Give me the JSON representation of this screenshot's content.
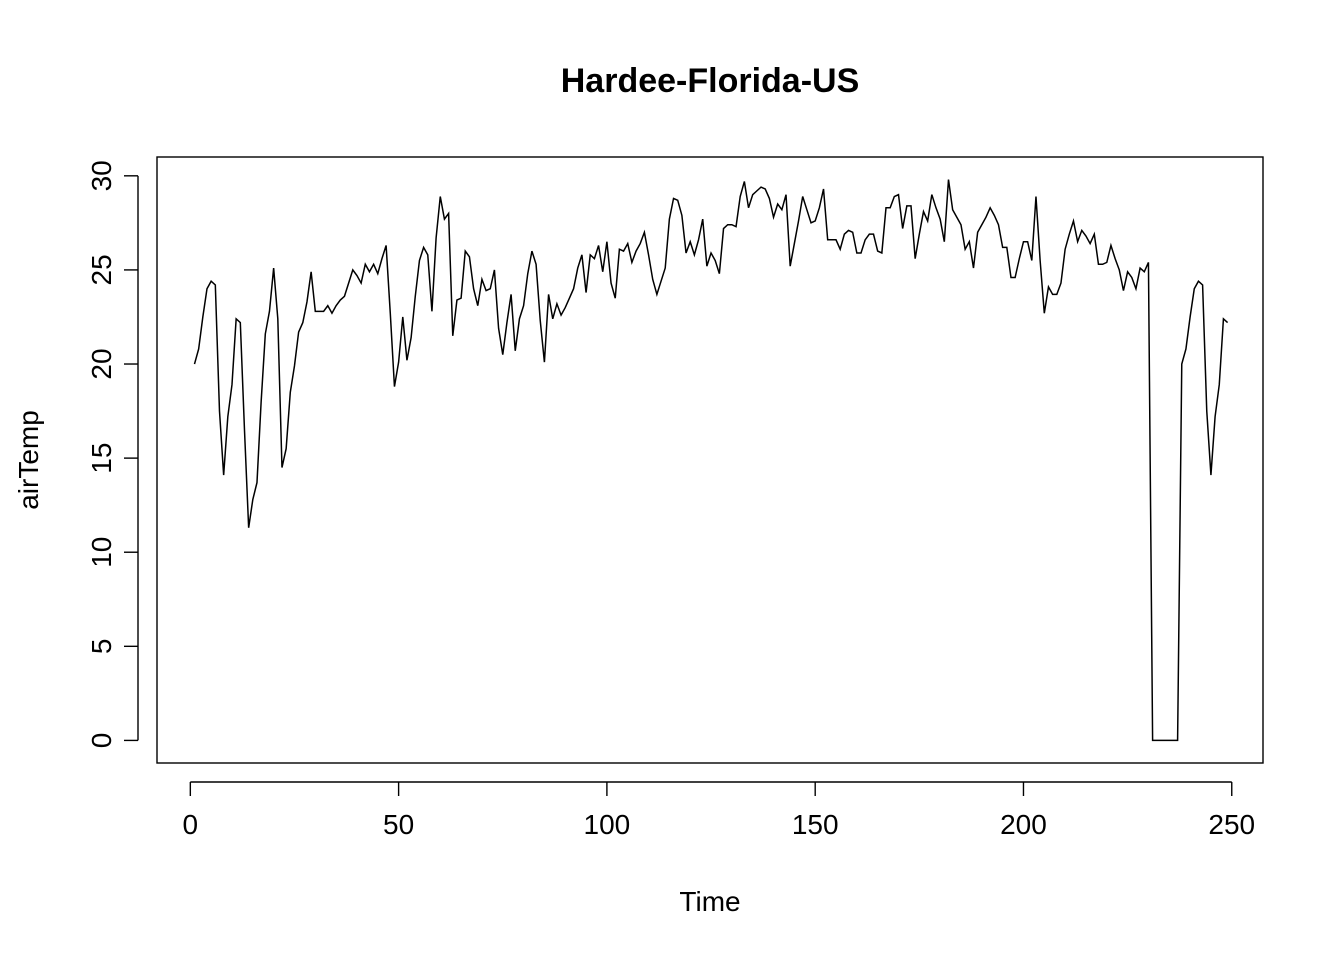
{
  "chart_data": {
    "type": "line",
    "title": "Hardee-Florida-US",
    "xlabel": "Time",
    "ylabel": "airTemp",
    "xlim": [
      -8,
      257.5
    ],
    "ylim": [
      -1.2,
      31.0
    ],
    "xticks": [
      0,
      50,
      100,
      150,
      200,
      250
    ],
    "yticks": [
      0,
      5,
      10,
      15,
      20,
      25,
      30
    ],
    "grid": false,
    "legend": "none",
    "series": [
      {
        "color": "#000000",
        "values": [
          20.0,
          20.8,
          22.5,
          24.0,
          24.4,
          24.2,
          17.5,
          14.1,
          17.2,
          18.9,
          22.4,
          22.2,
          16.5,
          11.3,
          12.8,
          13.7,
          18.0,
          21.6,
          22.8,
          25.1,
          22.4,
          14.5,
          15.5,
          18.5,
          19.9,
          21.7,
          22.2,
          23.3,
          24.9,
          22.8,
          22.8,
          22.8,
          23.1,
          22.7,
          23.1,
          23.4,
          23.6,
          24.3,
          25.0,
          24.7,
          24.3,
          25.3,
          24.9,
          25.3,
          24.8,
          25.6,
          26.3,
          22.7,
          18.8,
          20.1,
          22.5,
          20.2,
          21.4,
          23.6,
          25.5,
          26.2,
          25.8,
          22.8,
          26.7,
          28.9,
          27.7,
          28.0,
          21.5,
          23.4,
          23.5,
          26.0,
          25.7,
          24.0,
          23.1,
          24.5,
          23.9,
          24.0,
          25.0,
          21.9,
          20.5,
          22.2,
          23.7,
          20.7,
          22.4,
          23.1,
          24.8,
          26.0,
          25.3,
          22.3,
          20.1,
          23.7,
          22.4,
          23.2,
          22.6,
          23.0,
          23.5,
          24.0,
          25.1,
          25.8,
          23.8,
          25.8,
          25.6,
          26.3,
          24.9,
          26.5,
          24.3,
          23.5,
          26.1,
          26.0,
          26.4,
          25.4,
          26.0,
          26.4,
          27.0,
          25.8,
          24.5,
          23.7,
          24.4,
          25.1,
          27.7,
          28.8,
          28.7,
          27.9,
          25.9,
          26.5,
          25.8,
          26.6,
          27.7,
          25.2,
          25.9,
          25.5,
          24.8,
          27.2,
          27.4,
          27.4,
          27.3,
          28.9,
          29.7,
          28.3,
          29.0,
          29.2,
          29.4,
          29.3,
          28.8,
          27.8,
          28.5,
          28.2,
          29.0,
          25.2,
          26.4,
          27.6,
          28.9,
          28.2,
          27.5,
          27.6,
          28.3,
          29.3,
          26.6,
          26.6,
          26.6,
          26.1,
          26.9,
          27.1,
          27.0,
          25.9,
          25.9,
          26.6,
          26.9,
          26.9,
          26.0,
          25.9,
          28.3,
          28.3,
          28.9,
          29.0,
          27.2,
          28.4,
          28.4,
          25.6,
          26.9,
          28.1,
          27.6,
          29.0,
          28.3,
          27.7,
          26.5,
          29.8,
          28.2,
          27.8,
          27.4,
          26.1,
          26.5,
          25.1,
          27.0,
          27.4,
          27.8,
          28.3,
          27.9,
          27.4,
          26.2,
          26.2,
          24.6,
          24.6,
          25.6,
          26.5,
          26.5,
          25.5,
          28.9,
          25.5,
          22.7,
          24.1,
          23.7,
          23.7,
          24.3,
          26.1,
          26.9,
          27.6,
          26.5,
          27.1,
          26.8,
          26.4,
          26.9,
          25.3,
          25.3,
          25.4,
          26.3,
          25.6,
          25.0,
          23.9,
          24.9,
          24.6,
          24.0,
          25.1,
          24.9,
          25.4,
          0.0,
          0.0,
          0.0,
          0.0,
          0.0,
          0.0,
          0.0,
          20.0,
          20.8,
          22.5,
          24.0,
          24.4,
          24.2,
          17.5,
          14.1,
          17.2,
          18.9,
          22.4,
          22.2
        ]
      }
    ]
  }
}
